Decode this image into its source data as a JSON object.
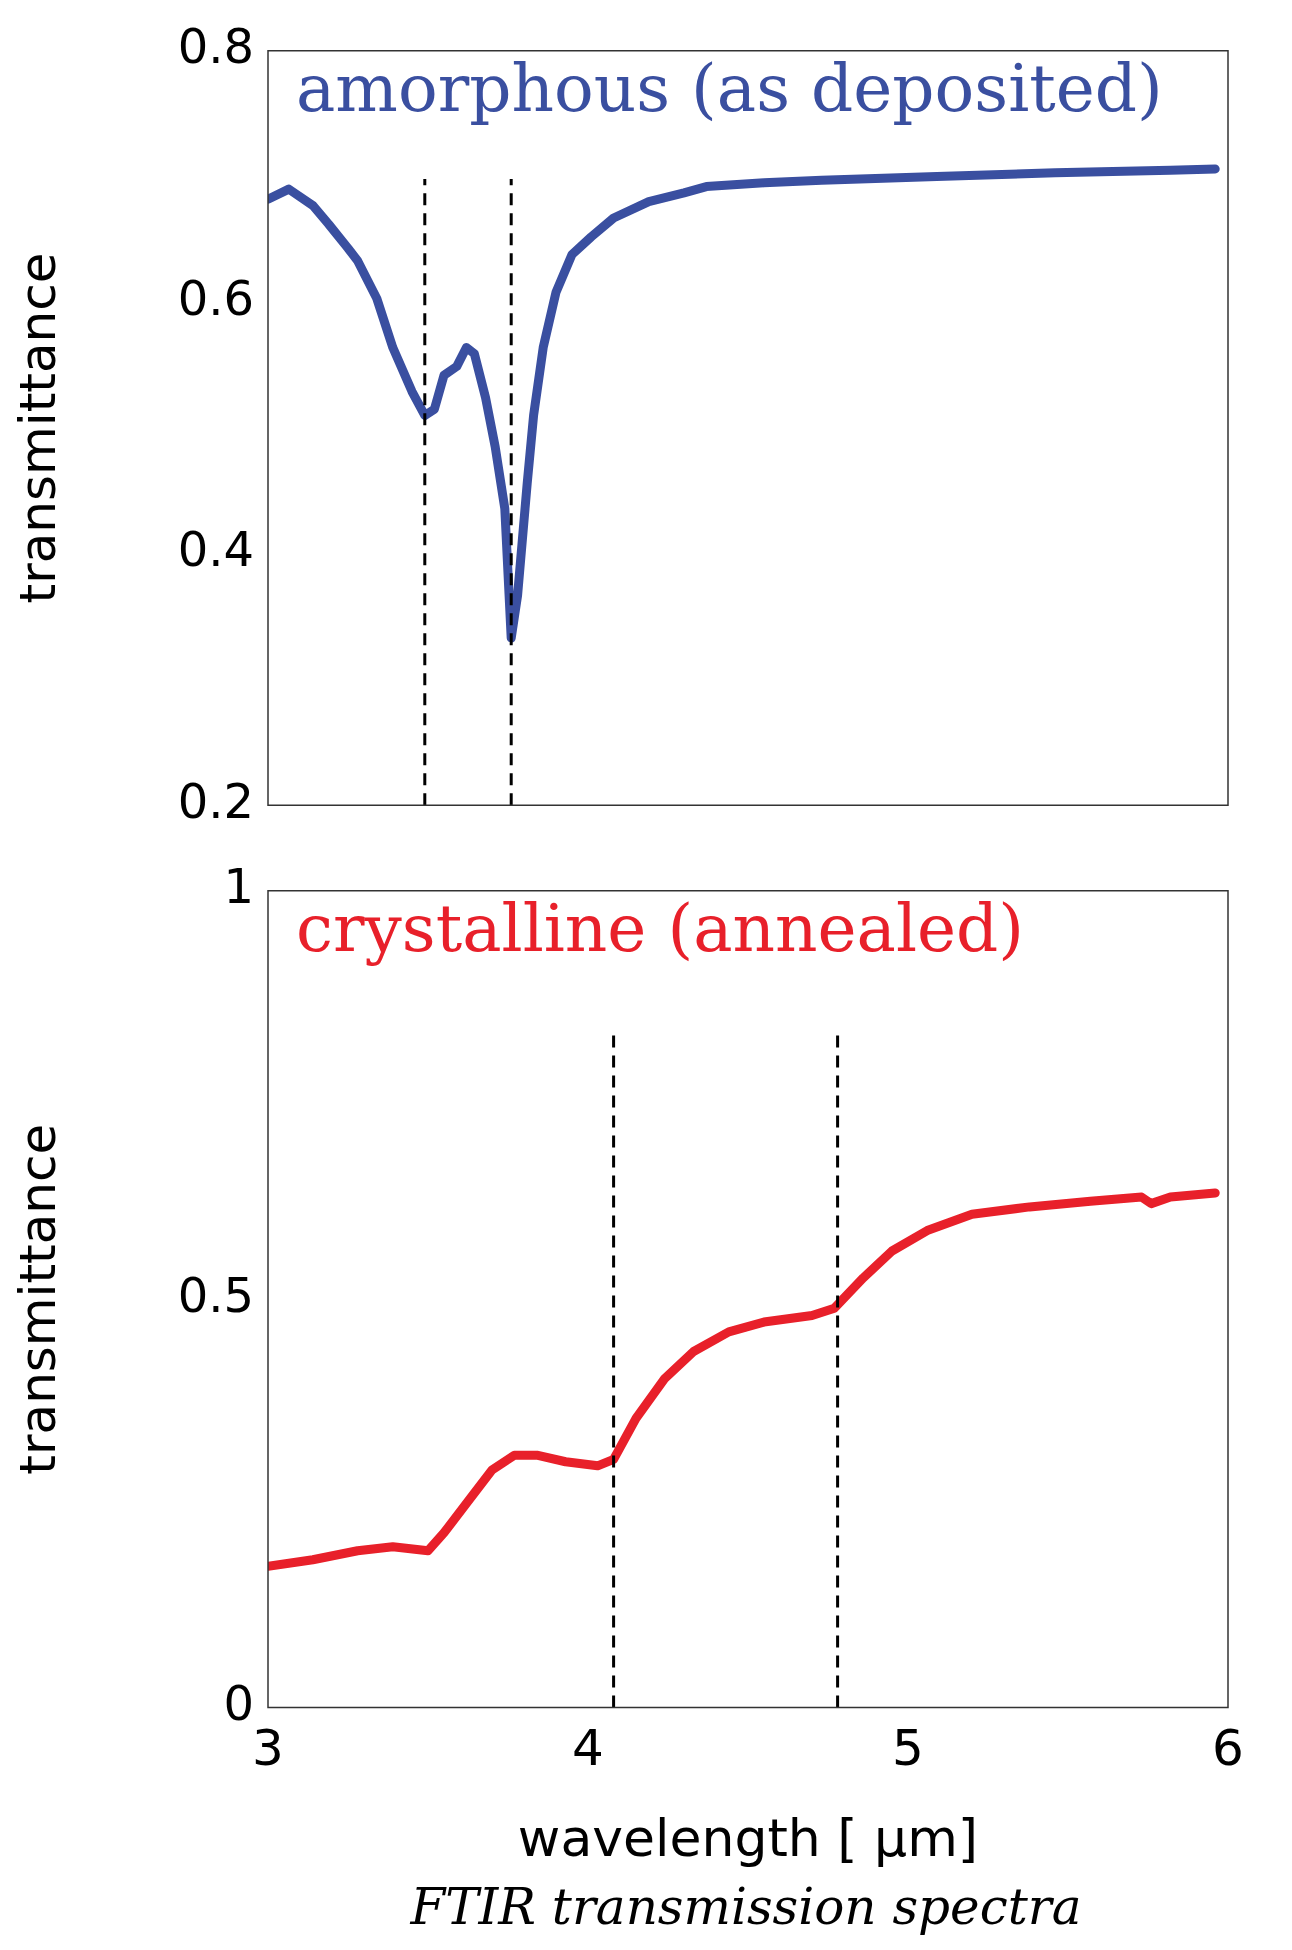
{
  "chart_data": [
    {
      "type": "line",
      "title": "amorphous (as deposited)",
      "ylabel": "transmittance",
      "xlim": [
        3,
        6
      ],
      "xticks": [
        3,
        4,
        5,
        6
      ],
      "ylim": [
        0.2,
        0.8
      ],
      "yticks": [
        0.2,
        0.4,
        0.6,
        0.8
      ],
      "tick_labels": "y",
      "line_style": "solid",
      "marker": "none",
      "series": [
        {
          "color": "#3a4fa0",
          "x": [
            3,
            3.065,
            3.14,
            3.19,
            3.25,
            3.28,
            3.34,
            3.39,
            3.45,
            3.49,
            3.52,
            3.55,
            3.59,
            3.62,
            3.645,
            3.68,
            3.71,
            3.74,
            3.76,
            3.78,
            3.81,
            3.83,
            3.86,
            3.9,
            3.95,
            4.01,
            4.08,
            4.19,
            4.3,
            4.37,
            4.55,
            4.73,
            5.09,
            5.46,
            5.82,
            5.96
          ],
          "values": [
            0.682,
            0.69,
            0.677,
            0.662,
            0.643,
            0.633,
            0.603,
            0.564,
            0.529,
            0.51,
            0.515,
            0.542,
            0.549,
            0.564,
            0.559,
            0.524,
            0.485,
            0.436,
            0.333,
            0.367,
            0.456,
            0.51,
            0.564,
            0.608,
            0.638,
            0.652,
            0.667,
            0.68,
            0.687,
            0.692,
            0.695,
            0.697,
            0.7,
            0.703,
            0.705,
            0.706
          ]
        }
      ],
      "ref_lines": [
        {
          "axis": "x",
          "value": 3.49,
          "color": "#000000",
          "line_style": "dashed"
        },
        {
          "axis": "x",
          "value": 3.76,
          "color": "#000000",
          "line_style": "dashed"
        }
      ]
    },
    {
      "type": "line",
      "title": "crystalline (annealed)",
      "xlabel": "wavelength [ μm]",
      "ylabel": "transmittance",
      "xlim": [
        3,
        6
      ],
      "xticks": [
        3,
        4,
        5,
        6
      ],
      "ylim": [
        0,
        1
      ],
      "yticks": [
        0,
        0.5,
        1
      ],
      "line_style": "solid",
      "marker": "none",
      "series": [
        {
          "color": "#e8202a",
          "x": [
            3,
            3.14,
            3.28,
            3.39,
            3.5,
            3.55,
            3.63,
            3.7,
            3.77,
            3.84,
            3.93,
            4.03,
            4.08,
            4.15,
            4.24,
            4.33,
            4.44,
            4.55,
            4.7,
            4.77,
            4.86,
            4.95,
            5.06,
            5.2,
            5.38,
            5.57,
            5.73,
            5.76,
            5.82,
            5.96
          ],
          "values": [
            0.173,
            0.181,
            0.192,
            0.197,
            0.192,
            0.214,
            0.255,
            0.291,
            0.309,
            0.309,
            0.301,
            0.296,
            0.304,
            0.354,
            0.403,
            0.436,
            0.46,
            0.472,
            0.48,
            0.489,
            0.526,
            0.559,
            0.584,
            0.604,
            0.613,
            0.62,
            0.625,
            0.617,
            0.625,
            0.63
          ]
        }
      ],
      "ref_lines": [
        {
          "axis": "x",
          "value": 4.08,
          "color": "#000000",
          "line_style": "dashed"
        },
        {
          "axis": "x",
          "value": 4.78,
          "color": "#000000",
          "line_style": "dashed"
        }
      ],
      "annotations": [
        "FTIR transmission spectra"
      ]
    }
  ]
}
